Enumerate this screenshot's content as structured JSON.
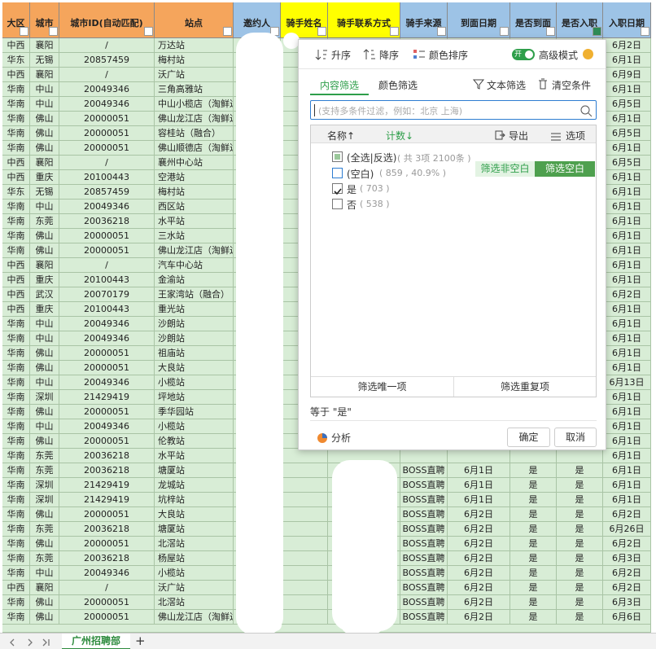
{
  "sheet": {
    "columns": [
      "大区",
      "城市",
      "城市ID(自动匹配)",
      "站点",
      "邀约人",
      "骑手姓名",
      "骑手联系方式",
      "骑手来源",
      "到面日期",
      "是否到面",
      "是否入职",
      "入职日期"
    ],
    "rows": [
      [
        "中西",
        "襄阳",
        "/",
        "万达站",
        null,
        null,
        null,
        null,
        null,
        null,
        null,
        "6月2日"
      ],
      [
        "华东",
        "无锡",
        "20857459",
        "梅村站",
        null,
        null,
        null,
        null,
        null,
        null,
        null,
        "6月1日"
      ],
      [
        "中西",
        "襄阳",
        "/",
        "沃广站",
        null,
        null,
        null,
        null,
        null,
        null,
        null,
        "6月9日"
      ],
      [
        "华南",
        "中山",
        "20049346",
        "三角高雅站",
        null,
        null,
        null,
        null,
        null,
        null,
        null,
        "6月1日"
      ],
      [
        "华南",
        "中山",
        "20049346",
        "中山小榄店（淘鲜达",
        null,
        null,
        null,
        null,
        null,
        null,
        null,
        "6月5日"
      ],
      [
        "华南",
        "佛山",
        "20000051",
        "佛山龙江店（淘鲜达",
        null,
        null,
        null,
        null,
        null,
        null,
        null,
        "6月1日"
      ],
      [
        "华南",
        "佛山",
        "20000051",
        "容桂站（融合）",
        null,
        null,
        null,
        null,
        null,
        null,
        null,
        "6月5日"
      ],
      [
        "华南",
        "佛山",
        "20000051",
        "佛山顺德店（淘鲜达",
        null,
        null,
        null,
        null,
        null,
        null,
        null,
        "6月1日"
      ],
      [
        "中西",
        "襄阳",
        "/",
        "襄州中心站",
        null,
        null,
        null,
        null,
        null,
        null,
        null,
        "6月5日"
      ],
      [
        "中西",
        "重庆",
        "20100443",
        "空港站",
        null,
        null,
        null,
        null,
        null,
        null,
        null,
        "6月1日"
      ],
      [
        "华东",
        "无锡",
        "20857459",
        "梅村站",
        null,
        null,
        null,
        null,
        null,
        null,
        null,
        "6月1日"
      ],
      [
        "华南",
        "中山",
        "20049346",
        "西区站",
        null,
        null,
        null,
        null,
        null,
        null,
        null,
        "6月1日"
      ],
      [
        "华南",
        "东莞",
        "20036218",
        "水平站",
        null,
        null,
        null,
        null,
        null,
        null,
        null,
        "6月1日"
      ],
      [
        "华南",
        "佛山",
        "20000051",
        "三水站",
        null,
        null,
        null,
        null,
        null,
        null,
        null,
        "6月1日"
      ],
      [
        "华南",
        "佛山",
        "20000051",
        "佛山龙江店（淘鲜达",
        null,
        null,
        null,
        null,
        null,
        null,
        null,
        "6月1日"
      ],
      [
        "中西",
        "襄阳",
        "/",
        "汽车中心站",
        null,
        null,
        null,
        null,
        null,
        null,
        null,
        "6月1日"
      ],
      [
        "中西",
        "重庆",
        "20100443",
        "金渝站",
        null,
        null,
        null,
        null,
        null,
        null,
        null,
        "6月1日"
      ],
      [
        "中西",
        "武汉",
        "20070179",
        "王家湾站（融合）",
        null,
        null,
        null,
        null,
        null,
        null,
        null,
        "6月2日"
      ],
      [
        "中西",
        "重庆",
        "20100443",
        "重光站",
        null,
        null,
        null,
        null,
        null,
        null,
        null,
        "6月1日"
      ],
      [
        "华南",
        "中山",
        "20049346",
        "沙朗站",
        null,
        null,
        null,
        null,
        null,
        null,
        null,
        "6月1日"
      ],
      [
        "华南",
        "中山",
        "20049346",
        "沙朗站",
        null,
        null,
        null,
        null,
        null,
        null,
        null,
        "6月1日"
      ],
      [
        "华南",
        "佛山",
        "20000051",
        "祖庙站",
        null,
        null,
        null,
        null,
        null,
        null,
        null,
        "6月1日"
      ],
      [
        "华南",
        "佛山",
        "20000051",
        "大良站",
        null,
        null,
        null,
        null,
        null,
        null,
        null,
        "6月1日"
      ],
      [
        "华南",
        "中山",
        "20049346",
        "小榄站",
        null,
        null,
        null,
        null,
        null,
        null,
        null,
        "6月13日"
      ],
      [
        "华南",
        "深圳",
        "21429419",
        "坪地站",
        null,
        null,
        null,
        null,
        null,
        null,
        null,
        "6月1日"
      ],
      [
        "华南",
        "佛山",
        "20000051",
        "季华园站",
        null,
        null,
        null,
        null,
        null,
        null,
        null,
        "6月1日"
      ],
      [
        "华南",
        "中山",
        "20049346",
        "小榄站",
        null,
        null,
        null,
        null,
        null,
        null,
        null,
        "6月1日"
      ],
      [
        "华南",
        "佛山",
        "20000051",
        "伦教站",
        null,
        null,
        null,
        null,
        null,
        null,
        null,
        "6月1日"
      ],
      [
        "华南",
        "东莞",
        "20036218",
        "水平站",
        null,
        null,
        null,
        null,
        null,
        null,
        null,
        "6月1日"
      ],
      [
        "华南",
        "东莞",
        "20036218",
        "塘厦站",
        null,
        null,
        null,
        "BOSS直聘",
        "6月1日",
        "是",
        "是",
        "6月1日"
      ],
      [
        "华南",
        "深圳",
        "21429419",
        "龙城站",
        null,
        null,
        null,
        "BOSS直聘",
        "6月1日",
        "是",
        "是",
        "6月1日"
      ],
      [
        "华南",
        "深圳",
        "21429419",
        "坑梓站",
        null,
        null,
        null,
        "BOSS直聘",
        "6月1日",
        "是",
        "是",
        "6月1日"
      ],
      [
        "华南",
        "佛山",
        "20000051",
        "大良站",
        null,
        null,
        null,
        "BOSS直聘",
        "6月2日",
        "是",
        "是",
        "6月2日"
      ],
      [
        "华南",
        "东莞",
        "20036218",
        "塘厦站",
        null,
        null,
        null,
        "BOSS直聘",
        "6月2日",
        "是",
        "是",
        "6月26日"
      ],
      [
        "华南",
        "佛山",
        "20000051",
        "北滘站",
        null,
        null,
        null,
        "BOSS直聘",
        "6月2日",
        "是",
        "是",
        "6月2日"
      ],
      [
        "华南",
        "东莞",
        "20036218",
        "杨屋站",
        null,
        null,
        null,
        "BOSS直聘",
        "6月2日",
        "是",
        "是",
        "6月3日"
      ],
      [
        "华南",
        "中山",
        "20049346",
        "小榄站",
        null,
        null,
        null,
        "BOSS直聘",
        "6月2日",
        "是",
        "是",
        "6月2日"
      ],
      [
        "中西",
        "襄阳",
        "/",
        "沃广站",
        null,
        null,
        null,
        "BOSS直聘",
        "6月2日",
        "是",
        "是",
        "6月2日"
      ],
      [
        "华南",
        "佛山",
        "20000051",
        "北滘站",
        null,
        null,
        null,
        "BOSS直聘",
        "6月2日",
        "是",
        "是",
        "6月3日"
      ],
      [
        "华南",
        "佛山",
        "20000051",
        "佛山龙江店（淘鲜达",
        null,
        null,
        null,
        "BOSS直聘",
        "6月2日",
        "是",
        "是",
        "6月6日"
      ]
    ]
  },
  "filter_popup": {
    "sort_asc": "升序",
    "sort_desc": "降序",
    "color_sort": "颜色排序",
    "toggle": "开",
    "advanced": "高级模式",
    "tab_content": "内容筛选",
    "tab_color": "颜色筛选",
    "text_filter": "文本筛选",
    "clear": "清空条件",
    "search_placeholder": "(支持多条件过滤，例如：北京 上海)",
    "col_name": "名称↑",
    "col_count": "计数↓",
    "export": "导出",
    "options": "选项",
    "items": [
      {
        "label": "(全选|反选)",
        "count": "( 共 3项 2100条 )"
      },
      {
        "label": "(空白)",
        "count": "( 859 , 40.9% )"
      },
      {
        "label": "是",
        "count": "( 703 )"
      },
      {
        "label": "否",
        "count": "( 538 )"
      }
    ],
    "filter_nonblank": "筛选非空白",
    "filter_blank": "筛选空白",
    "unique": "筛选唯一项",
    "duplicate": "筛选重复项",
    "condition": "等于 \"是\"",
    "analyze": "分析",
    "ok": "确定",
    "cancel": "取消"
  },
  "sheet_tabs": {
    "active": "广州招聘部",
    "add": "+"
  }
}
